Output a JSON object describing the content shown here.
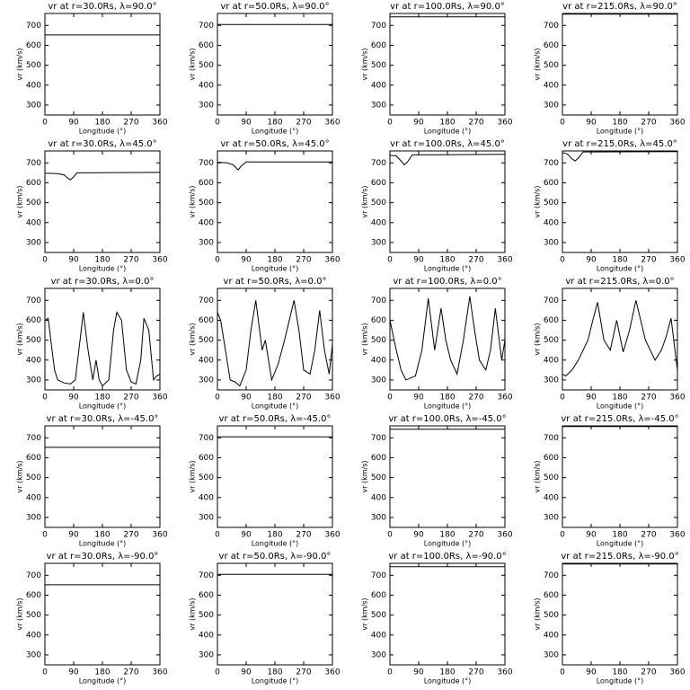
{
  "chart_data": [
    {
      "type": "line",
      "title": "vr at r=30.0Rs, λ=90.0°",
      "xlabel": "Longitude (°)",
      "ylabel": "vr (km/s)",
      "x": [
        0,
        360
      ],
      "values": [
        652,
        652
      ],
      "color": "#000000",
      "xlim": [
        0,
        360
      ],
      "ylim": [
        250,
        760
      ],
      "xticks": [
        0,
        90,
        180,
        270,
        360
      ],
      "yticks": [
        300,
        400,
        500,
        600,
        700
      ]
    },
    {
      "type": "line",
      "title": "vr at r=50.0Rs, λ=90.0°",
      "xlabel": "Longitude (°)",
      "ylabel": "vr (km/s)",
      "x": [
        0,
        360
      ],
      "values": [
        705,
        705
      ],
      "color": "#000000",
      "xlim": [
        0,
        360
      ],
      "ylim": [
        250,
        760
      ],
      "xticks": [
        0,
        90,
        180,
        270,
        360
      ],
      "yticks": [
        300,
        400,
        500,
        600,
        700
      ]
    },
    {
      "type": "line",
      "title": "vr at r=100.0Rs, λ=90.0°",
      "xlabel": "Longitude (°)",
      "ylabel": "vr (km/s)",
      "x": [
        0,
        360
      ],
      "values": [
        743,
        743
      ],
      "color": "#000000",
      "xlim": [
        0,
        360
      ],
      "ylim": [
        250,
        760
      ],
      "xticks": [
        0,
        90,
        180,
        270,
        360
      ],
      "yticks": [
        300,
        400,
        500,
        600,
        700
      ]
    },
    {
      "type": "line",
      "title": "vr at r=215.0Rs, λ=90.0°",
      "xlabel": "Longitude (°)",
      "ylabel": "vr (km/s)",
      "x": [
        0,
        360
      ],
      "values": [
        757,
        757
      ],
      "color": "#000000",
      "xlim": [
        0,
        360
      ],
      "ylim": [
        250,
        760
      ],
      "xticks": [
        0,
        90,
        180,
        270,
        360
      ],
      "yticks": [
        300,
        400,
        500,
        600,
        700
      ]
    },
    {
      "type": "line",
      "title": "vr at r=30.0Rs, λ=45.0°",
      "xlabel": "Longitude (°)",
      "ylabel": "vr (km/s)",
      "x": [
        0,
        40,
        60,
        70,
        80,
        90,
        100,
        360
      ],
      "values": [
        648,
        646,
        640,
        625,
        615,
        630,
        650,
        652
      ],
      "color": "#000000",
      "xlim": [
        0,
        360
      ],
      "ylim": [
        250,
        760
      ],
      "xticks": [
        0,
        90,
        180,
        270,
        360
      ],
      "yticks": [
        300,
        400,
        500,
        600,
        700
      ]
    },
    {
      "type": "line",
      "title": "vr at r=50.0Rs, λ=45.0°",
      "xlabel": "Longitude (°)",
      "ylabel": "vr (km/s)",
      "x": [
        0,
        30,
        50,
        60,
        65,
        75,
        90,
        360
      ],
      "values": [
        703,
        700,
        690,
        672,
        665,
        685,
        705,
        705
      ],
      "color": "#000000",
      "xlim": [
        0,
        360
      ],
      "ylim": [
        250,
        760
      ],
      "xticks": [
        0,
        90,
        180,
        270,
        360
      ],
      "yticks": [
        300,
        400,
        500,
        600,
        700
      ]
    },
    {
      "type": "line",
      "title": "vr at r=100.0Rs, λ=45.0°",
      "xlabel": "Longitude (°)",
      "ylabel": "vr (km/s)",
      "x": [
        0,
        20,
        35,
        45,
        55,
        70,
        360
      ],
      "values": [
        738,
        735,
        710,
        690,
        705,
        740,
        743
      ],
      "color": "#000000",
      "xlim": [
        0,
        360
      ],
      "ylim": [
        250,
        760
      ],
      "xticks": [
        0,
        90,
        180,
        270,
        360
      ],
      "yticks": [
        300,
        400,
        500,
        600,
        700
      ]
    },
    {
      "type": "line",
      "title": "vr at r=215.0Rs, λ=45.0°",
      "xlabel": "Longitude (°)",
      "ylabel": "vr (km/s)",
      "x": [
        0,
        15,
        30,
        40,
        50,
        65,
        360
      ],
      "values": [
        752,
        745,
        720,
        710,
        725,
        755,
        757
      ],
      "color": "#000000",
      "xlim": [
        0,
        360
      ],
      "ylim": [
        250,
        760
      ],
      "xticks": [
        0,
        90,
        180,
        270,
        360
      ],
      "yticks": [
        300,
        400,
        500,
        600,
        700
      ]
    },
    {
      "type": "line",
      "title": "vr at r=30.0Rs, λ=0.0°",
      "xlabel": "Longitude (°)",
      "ylabel": "vr (km/s)",
      "x": [
        0,
        10,
        20,
        30,
        40,
        60,
        80,
        95,
        110,
        120,
        135,
        150,
        160,
        170,
        180,
        200,
        215,
        225,
        240,
        255,
        270,
        285,
        300,
        310,
        325,
        340,
        350,
        360
      ],
      "values": [
        600,
        610,
        480,
        350,
        300,
        285,
        280,
        300,
        500,
        640,
        450,
        300,
        400,
        300,
        270,
        300,
        550,
        640,
        600,
        350,
        290,
        280,
        400,
        610,
        550,
        300,
        320,
        330
      ],
      "color": "#000000",
      "xlim": [
        0,
        360
      ],
      "ylim": [
        250,
        760
      ],
      "xticks": [
        0,
        90,
        180,
        270,
        360
      ],
      "yticks": [
        300,
        400,
        500,
        600,
        700
      ]
    },
    {
      "type": "line",
      "title": "vr at r=50.0Rs, λ=0.0°",
      "xlabel": "Longitude (°)",
      "ylabel": "vr (km/s)",
      "x": [
        0,
        10,
        25,
        40,
        55,
        70,
        90,
        105,
        120,
        140,
        150,
        170,
        190,
        210,
        240,
        255,
        270,
        290,
        305,
        320,
        335,
        350,
        360
      ],
      "values": [
        640,
        600,
        450,
        300,
        290,
        270,
        350,
        550,
        700,
        450,
        500,
        300,
        380,
        500,
        700,
        550,
        350,
        330,
        450,
        650,
        450,
        330,
        480
      ],
      "color": "#000000",
      "xlim": [
        0,
        360
      ],
      "ylim": [
        250,
        760
      ],
      "xticks": [
        0,
        90,
        180,
        270,
        360
      ],
      "yticks": [
        300,
        400,
        500,
        600,
        700
      ]
    },
    {
      "type": "line",
      "title": "vr at r=100.0Rs, λ=0.0°",
      "xlabel": "Longitude (°)",
      "ylabel": "vr (km/s)",
      "x": [
        0,
        20,
        35,
        50,
        65,
        80,
        100,
        120,
        140,
        160,
        175,
        190,
        210,
        230,
        250,
        265,
        280,
        300,
        315,
        330,
        350,
        360
      ],
      "values": [
        600,
        450,
        350,
        300,
        310,
        320,
        450,
        710,
        450,
        660,
        500,
        400,
        330,
        500,
        720,
        550,
        400,
        350,
        450,
        660,
        400,
        500
      ],
      "color": "#000000",
      "xlim": [
        0,
        360
      ],
      "ylim": [
        250,
        760
      ],
      "xticks": [
        0,
        90,
        180,
        270,
        360
      ],
      "yticks": [
        300,
        400,
        500,
        600,
        700
      ]
    },
    {
      "type": "line",
      "title": "vr at r=215.0Rs, λ=0.0°",
      "xlabel": "Longitude (°)",
      "ylabel": "vr (km/s)",
      "x": [
        0,
        10,
        30,
        50,
        80,
        95,
        110,
        130,
        150,
        170,
        190,
        210,
        230,
        260,
        290,
        310,
        325,
        340,
        360
      ],
      "values": [
        330,
        320,
        350,
        400,
        500,
        600,
        690,
        500,
        450,
        600,
        440,
        550,
        700,
        500,
        400,
        450,
        520,
        610,
        350
      ],
      "color": "#000000",
      "xlim": [
        0,
        360
      ],
      "ylim": [
        250,
        760
      ],
      "xticks": [
        0,
        90,
        180,
        270,
        360
      ],
      "yticks": [
        300,
        400,
        500,
        600,
        700
      ]
    },
    {
      "type": "line",
      "title": "vr at r=30.0Rs, λ=-45.0°",
      "xlabel": "Longitude (°)",
      "ylabel": "vr (km/s)",
      "x": [
        0,
        360
      ],
      "values": [
        652,
        652
      ],
      "color": "#000000",
      "xlim": [
        0,
        360
      ],
      "ylim": [
        250,
        760
      ],
      "xticks": [
        0,
        90,
        180,
        270,
        360
      ],
      "yticks": [
        300,
        400,
        500,
        600,
        700
      ]
    },
    {
      "type": "line",
      "title": "vr at r=50.0Rs, λ=-45.0°",
      "xlabel": "Longitude (°)",
      "ylabel": "vr (km/s)",
      "x": [
        0,
        360
      ],
      "values": [
        705,
        705
      ],
      "color": "#000000",
      "xlim": [
        0,
        360
      ],
      "ylim": [
        250,
        760
      ],
      "xticks": [
        0,
        90,
        180,
        270,
        360
      ],
      "yticks": [
        300,
        400,
        500,
        600,
        700
      ]
    },
    {
      "type": "line",
      "title": "vr at r=100.0Rs, λ=-45.0°",
      "xlabel": "Longitude (°)",
      "ylabel": "vr (km/s)",
      "x": [
        0,
        360
      ],
      "values": [
        743,
        743
      ],
      "color": "#000000",
      "xlim": [
        0,
        360
      ],
      "ylim": [
        250,
        760
      ],
      "xticks": [
        0,
        90,
        180,
        270,
        360
      ],
      "yticks": [
        300,
        400,
        500,
        600,
        700
      ]
    },
    {
      "type": "line",
      "title": "vr at r=215.0Rs, λ=-45.0°",
      "xlabel": "Longitude (°)",
      "ylabel": "vr (km/s)",
      "x": [
        0,
        360
      ],
      "values": [
        757,
        757
      ],
      "color": "#000000",
      "xlim": [
        0,
        360
      ],
      "ylim": [
        250,
        760
      ],
      "xticks": [
        0,
        90,
        180,
        270,
        360
      ],
      "yticks": [
        300,
        400,
        500,
        600,
        700
      ]
    },
    {
      "type": "line",
      "title": "vr at r=30.0Rs, λ=-90.0°",
      "xlabel": "Longitude (°)",
      "ylabel": "vr (km/s)",
      "x": [
        0,
        360
      ],
      "values": [
        652,
        652
      ],
      "color": "#000000",
      "xlim": [
        0,
        360
      ],
      "ylim": [
        250,
        760
      ],
      "xticks": [
        0,
        90,
        180,
        270,
        360
      ],
      "yticks": [
        300,
        400,
        500,
        600,
        700
      ]
    },
    {
      "type": "line",
      "title": "vr at r=50.0Rs, λ=-90.0°",
      "xlabel": "Longitude (°)",
      "ylabel": "vr (km/s)",
      "x": [
        0,
        360
      ],
      "values": [
        705,
        705
      ],
      "color": "#000000",
      "xlim": [
        0,
        360
      ],
      "ylim": [
        250,
        760
      ],
      "xticks": [
        0,
        90,
        180,
        270,
        360
      ],
      "yticks": [
        300,
        400,
        500,
        600,
        700
      ]
    },
    {
      "type": "line",
      "title": "vr at r=100.0Rs, λ=-90.0°",
      "xlabel": "Longitude (°)",
      "ylabel": "vr (km/s)",
      "x": [
        0,
        360
      ],
      "values": [
        743,
        743
      ],
      "color": "#000000",
      "xlim": [
        0,
        360
      ],
      "ylim": [
        250,
        760
      ],
      "xticks": [
        0,
        90,
        180,
        270,
        360
      ],
      "yticks": [
        300,
        400,
        500,
        600,
        700
      ]
    },
    {
      "type": "line",
      "title": "vr at r=215.0Rs, λ=-90.0°",
      "xlabel": "Longitude (°)",
      "ylabel": "vr (km/s)",
      "x": [
        0,
        360
      ],
      "values": [
        757,
        757
      ],
      "color": "#000000",
      "xlim": [
        0,
        360
      ],
      "ylim": [
        250,
        760
      ],
      "xticks": [
        0,
        90,
        180,
        270,
        360
      ],
      "yticks": [
        300,
        400,
        500,
        600,
        700
      ]
    }
  ]
}
